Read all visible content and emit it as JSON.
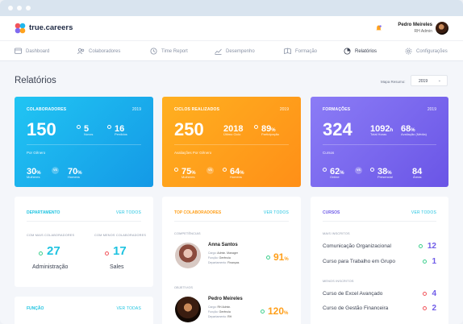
{
  "app": {
    "brand": "true.careers",
    "user_name": "Pedro Meireles",
    "user_role": "RH Admin"
  },
  "nav": [
    {
      "label": "Dashboard",
      "icon": "dashboard-icon"
    },
    {
      "label": "Colaboradores",
      "icon": "people-icon"
    },
    {
      "label": "Time Report",
      "icon": "clock-icon"
    },
    {
      "label": "Desempenho",
      "icon": "trend-icon"
    },
    {
      "label": "Formação",
      "icon": "book-icon"
    },
    {
      "label": "Relatórios",
      "icon": "report-icon"
    },
    {
      "label": "Configurações",
      "icon": "gear-icon"
    }
  ],
  "page": {
    "title": "Relatórios",
    "filter_label": "Mapa Resumo:",
    "year_select": "2019"
  },
  "cards": {
    "colaboradores": {
      "title": "COLABORADORES",
      "year": "2019",
      "total": "150",
      "novos": "5",
      "novos_label": "Novos",
      "perdidos": "16",
      "perdidos_label": "Perdidos",
      "sub": "Por Gênero",
      "mulheres": "30",
      "mulheres_label": "Mulheres",
      "homens": "70",
      "homens_label": "Homens",
      "vs": "VS",
      "pct": "%",
      "color": "#1db7ee"
    },
    "ciclos": {
      "title": "CICLOS REALIZADOS",
      "year": "2019",
      "total": "250",
      "ultimo": "2018",
      "ultimo_label": "Último Ciclo",
      "participacao": "89",
      "participacao_label": "Participação",
      "sub": "Avaliações Por Gênero",
      "mulheres": "75",
      "mulheres_label": "Mulheres",
      "homens": "64",
      "homens_label": "Homens",
      "vs": "VS",
      "pct": "%",
      "color": "#ffa21d"
    },
    "formacoes": {
      "title": "FORMAÇÕES",
      "year": "2019",
      "total": "324",
      "horas": "1092",
      "horas_unit": "h",
      "horas_label": "Total Horas",
      "avaliacao": "68",
      "avaliacao_label": "Avaliação (Média)",
      "sub": "Cursos",
      "online": "62",
      "online_label": "Online",
      "presencial": "38",
      "presencial_label": "Presencial",
      "areas": "84",
      "areas_label": "Áreas",
      "vs": "VS",
      "pct": "%",
      "color": "#7f6af0"
    }
  },
  "departamento": {
    "title": "DEPARTAMENTO",
    "link": "VER TODOS",
    "mais_label": "COM MAIS COLABORADORES",
    "menos_label": "COM MENOS COLABORADORES",
    "mais_value": "27",
    "mais_name": "Administração",
    "menos_value": "17",
    "menos_name": "Sales"
  },
  "funcao": {
    "title": "FUNÇÃO",
    "link": "VER TODAS"
  },
  "top": {
    "title": "TOP COLABORADORES",
    "link": "VER TODOS",
    "sections": [
      "COMPETÊNCIAS",
      "OBJETIVOS"
    ],
    "people": [
      {
        "name": "Anna Santos",
        "cargo_label": "Cargo:",
        "cargo": "Admin. Manager",
        "funcao_label": "Função:",
        "funcao": "Gerência",
        "dep_label": "Departamento:",
        "dep": "Finanças",
        "score": "91",
        "unit": "%"
      },
      {
        "name": "Pedro Meireles",
        "cargo_label": "Cargo:",
        "cargo": "RH Admin.",
        "funcao_label": "Função:",
        "funcao": "Gerência",
        "dep_label": "Departamento:",
        "dep": "RH",
        "score": "120",
        "unit": "%"
      }
    ]
  },
  "cursos": {
    "title": "CURSOS",
    "link": "VER TODOS",
    "mais_label": "MAIS INSCRITOS",
    "menos_label": "MENOS INSCRITOS",
    "mais": [
      {
        "name": "Comunicação Organizacional",
        "value": "12"
      },
      {
        "name": "Curso para Trabalho em Grupo",
        "value": "1"
      }
    ],
    "menos": [
      {
        "name": "Curso de Excel Avançado",
        "value": "4"
      },
      {
        "name": "Curso de Gestão Financeira",
        "value": "2"
      }
    ]
  },
  "colors": {
    "cyan": "#1fc3e0",
    "orange": "#ff9f1a",
    "purple": "#6f5be8",
    "green": "#3ecf8e",
    "red": "#f2545b"
  }
}
